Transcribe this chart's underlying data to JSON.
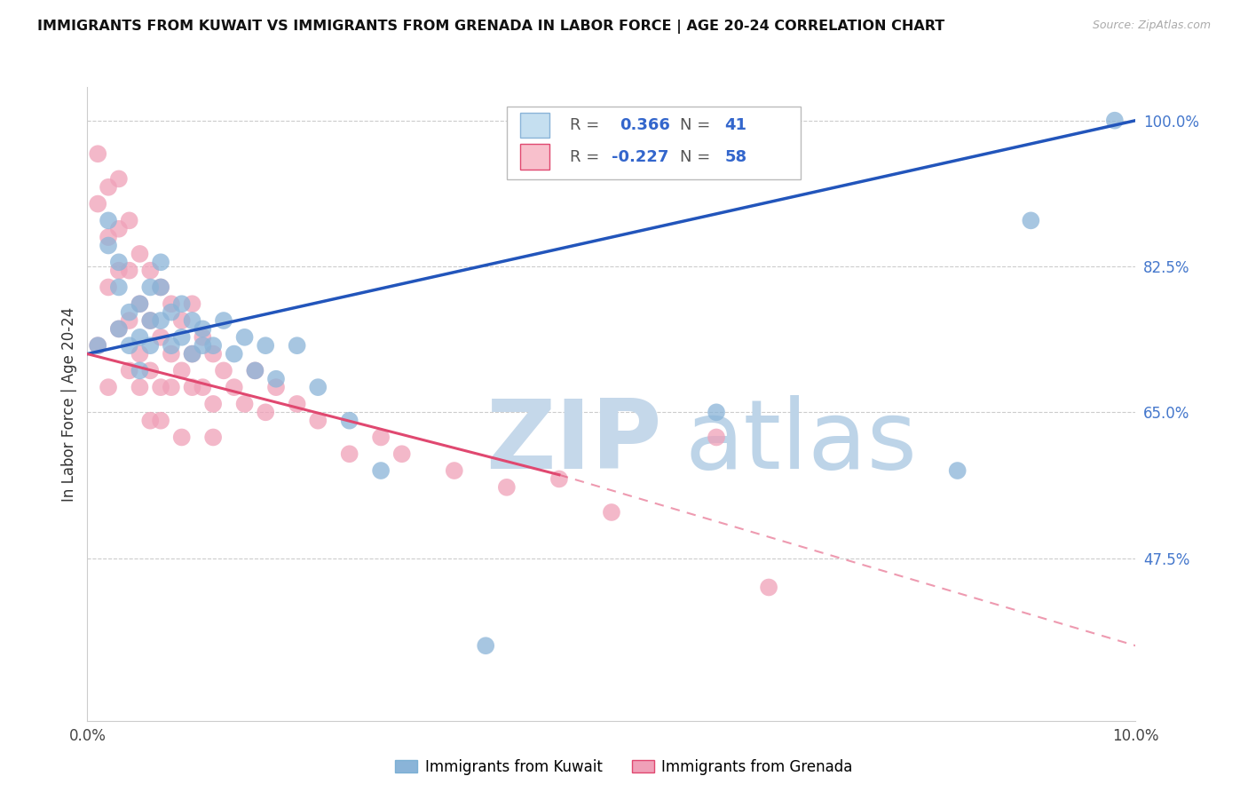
{
  "title": "IMMIGRANTS FROM KUWAIT VS IMMIGRANTS FROM GRENADA IN LABOR FORCE | AGE 20-24 CORRELATION CHART",
  "source": "Source: ZipAtlas.com",
  "ylabel": "In Labor Force | Age 20-24",
  "xlim": [
    0.0,
    0.1
  ],
  "ylim": [
    0.28,
    1.04
  ],
  "yticks_right": [
    1.0,
    0.825,
    0.65,
    0.475
  ],
  "yticks_right_labels": [
    "100.0%",
    "82.5%",
    "65.0%",
    "47.5%"
  ],
  "kuwait_color": "#8ab4d8",
  "grenada_color": "#f0a0b8",
  "kuwait_line_color": "#2255bb",
  "grenada_line_color": "#e04870",
  "watermark_text": "ZIPatlas",
  "watermark_color": "#d0e8f5",
  "kuwait_line_x0": 0.0,
  "kuwait_line_y0": 0.72,
  "kuwait_line_x1": 0.1,
  "kuwait_line_y1": 1.0,
  "grenada_line_x0": 0.0,
  "grenada_line_y0": 0.72,
  "grenada_line_x1_solid": 0.045,
  "grenada_line_y1_solid": 0.575,
  "grenada_line_x1_dash": 0.1,
  "grenada_line_y1_dash": 0.37,
  "kuwait_x": [
    0.001,
    0.002,
    0.003,
    0.003,
    0.004,
    0.004,
    0.005,
    0.005,
    0.005,
    0.006,
    0.006,
    0.007,
    0.007,
    0.008,
    0.008,
    0.009,
    0.009,
    0.01,
    0.01,
    0.011,
    0.012,
    0.013,
    0.014,
    0.015,
    0.016,
    0.017,
    0.018,
    0.02,
    0.022,
    0.025,
    0.028,
    0.038,
    0.06,
    0.083,
    0.09,
    0.098,
    0.002,
    0.003,
    0.006,
    0.007,
    0.011
  ],
  "kuwait_y": [
    0.73,
    0.85,
    0.8,
    0.75,
    0.77,
    0.73,
    0.78,
    0.74,
    0.7,
    0.8,
    0.76,
    0.8,
    0.76,
    0.77,
    0.73,
    0.78,
    0.74,
    0.76,
    0.72,
    0.75,
    0.73,
    0.76,
    0.72,
    0.74,
    0.7,
    0.73,
    0.69,
    0.73,
    0.68,
    0.64,
    0.58,
    0.37,
    0.65,
    0.58,
    0.88,
    1.0,
    0.88,
    0.83,
    0.73,
    0.83,
    0.73
  ],
  "grenada_x": [
    0.001,
    0.001,
    0.002,
    0.002,
    0.002,
    0.003,
    0.003,
    0.003,
    0.004,
    0.004,
    0.004,
    0.005,
    0.005,
    0.005,
    0.006,
    0.006,
    0.006,
    0.007,
    0.007,
    0.007,
    0.008,
    0.008,
    0.009,
    0.009,
    0.01,
    0.01,
    0.011,
    0.011,
    0.012,
    0.012,
    0.013,
    0.014,
    0.015,
    0.016,
    0.017,
    0.018,
    0.02,
    0.022,
    0.025,
    0.028,
    0.03,
    0.035,
    0.04,
    0.045,
    0.05,
    0.06,
    0.065,
    0.001,
    0.002,
    0.003,
    0.004,
    0.005,
    0.006,
    0.007,
    0.008,
    0.009,
    0.01,
    0.012
  ],
  "grenada_y": [
    0.96,
    0.9,
    0.92,
    0.86,
    0.8,
    0.93,
    0.87,
    0.82,
    0.88,
    0.82,
    0.76,
    0.84,
    0.78,
    0.72,
    0.82,
    0.76,
    0.7,
    0.8,
    0.74,
    0.68,
    0.78,
    0.72,
    0.76,
    0.7,
    0.78,
    0.72,
    0.74,
    0.68,
    0.72,
    0.66,
    0.7,
    0.68,
    0.66,
    0.7,
    0.65,
    0.68,
    0.66,
    0.64,
    0.6,
    0.62,
    0.6,
    0.58,
    0.56,
    0.57,
    0.53,
    0.62,
    0.44,
    0.73,
    0.68,
    0.75,
    0.7,
    0.68,
    0.64,
    0.64,
    0.68,
    0.62,
    0.68,
    0.62
  ]
}
